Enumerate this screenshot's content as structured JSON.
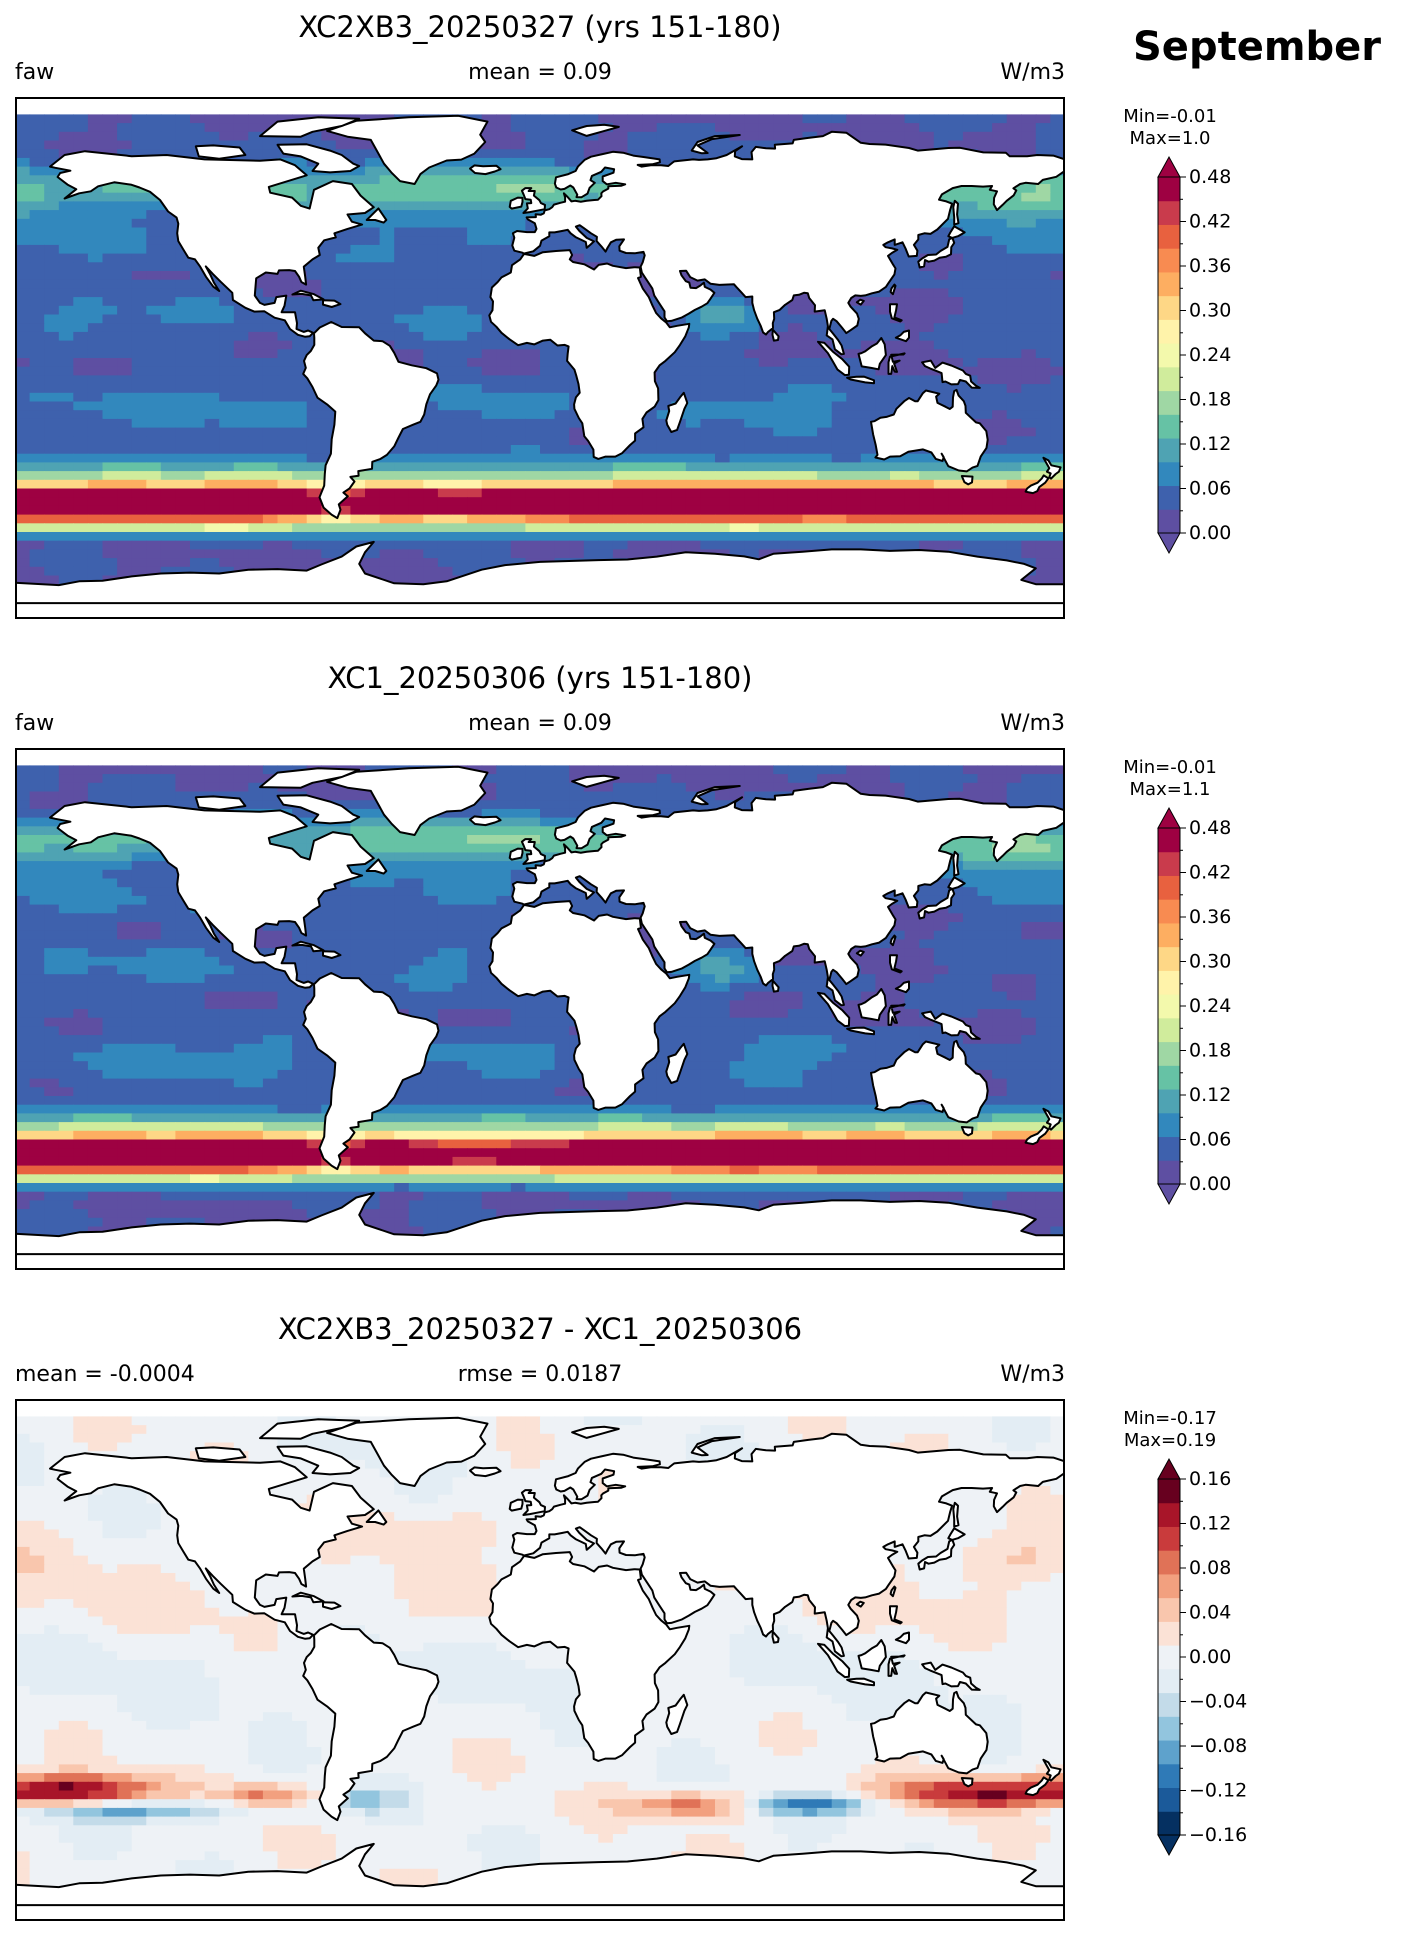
{
  "month": "September",
  "colors": {
    "land": "#ffffff",
    "coast": "#000000",
    "spectral": [
      "#5e4fa2",
      "#3e61ad",
      "#3288bd",
      "#4fa3b3",
      "#66c2a5",
      "#9fd7a4",
      "#d0ec9c",
      "#f3f9ac",
      "#fff3aa",
      "#fed786",
      "#fdae61",
      "#f88b51",
      "#e8613f",
      "#c93b4c",
      "#9e0142"
    ],
    "rdbu": [
      "#053061",
      "#1b5a9a",
      "#2f7ab7",
      "#5ea2cc",
      "#92c5de",
      "#c3dbe9",
      "#e3edf4",
      "#eef2f6",
      "#fbe2d6",
      "#f9c6ad",
      "#f2a07f",
      "#e07257",
      "#c93b3c",
      "#a81529",
      "#67001f"
    ]
  },
  "panels": [
    {
      "id": "model-a",
      "title": "XC2XB3_20250327 (yrs 151-180)",
      "left_label": "faw",
      "center_label": "mean = 0.09",
      "right_label": "W/m3",
      "min_label": "Min=-0.01",
      "max_label": "Max=1.0",
      "colorbar": {
        "palette": "spectral",
        "ticks": [
          "0.00",
          "0.06",
          "0.12",
          "0.18",
          "0.24",
          "0.30",
          "0.36",
          "0.42",
          "0.48"
        ],
        "range": [
          0.0,
          0.48
        ],
        "extend": "both"
      },
      "map": {
        "projection": "PlateCarree",
        "lon_range": [
          -180,
          180
        ],
        "lat_range": [
          -90,
          90
        ],
        "field_type": "sequential",
        "variant": 0
      }
    },
    {
      "id": "model-b",
      "title": "XC1_20250306 (yrs 151-180)",
      "left_label": "faw",
      "center_label": "mean = 0.09",
      "right_label": "W/m3",
      "min_label": "Min=-0.01",
      "max_label": "Max=1.1",
      "colorbar": {
        "palette": "spectral",
        "ticks": [
          "0.00",
          "0.06",
          "0.12",
          "0.18",
          "0.24",
          "0.30",
          "0.36",
          "0.42",
          "0.48"
        ],
        "range": [
          0.0,
          0.48
        ],
        "extend": "both"
      },
      "map": {
        "projection": "PlateCarree",
        "lon_range": [
          -180,
          180
        ],
        "lat_range": [
          -90,
          90
        ],
        "field_type": "sequential",
        "variant": 1
      }
    },
    {
      "id": "difference",
      "title": "XC2XB3_20250327 - XC1_20250306",
      "left_label": "mean = -0.0004",
      "center_label": "rmse = 0.0187",
      "right_label": "W/m3",
      "min_label": "Min=-0.17",
      "max_label": "Max=0.19",
      "colorbar": {
        "palette": "rdbu",
        "ticks": [
          "−0.16",
          "−0.12",
          "−0.08",
          "−0.04",
          "0.00",
          "0.04",
          "0.08",
          "0.12",
          "0.16"
        ],
        "range": [
          -0.16,
          0.16
        ],
        "extend": "both"
      },
      "map": {
        "projection": "PlateCarree",
        "lon_range": [
          -180,
          180
        ],
        "lat_range": [
          -90,
          90
        ],
        "field_type": "diverging",
        "variant": 2
      }
    }
  ]
}
